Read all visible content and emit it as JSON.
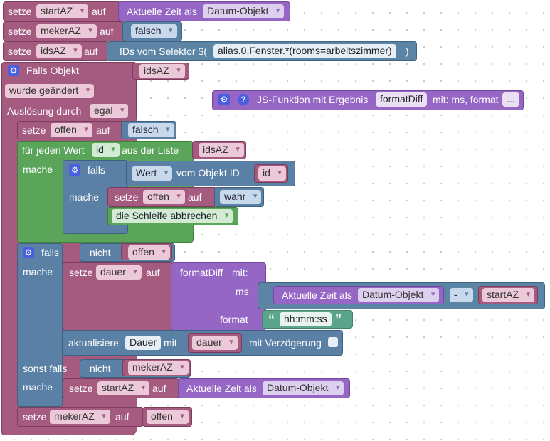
{
  "b1": {
    "setze": "setze",
    "var": "startAZ",
    "auf": "auf",
    "value": "Aktuelle Zeit als",
    "format": "Datum-Objekt"
  },
  "b2": {
    "setze": "setze",
    "var": "mekerAZ",
    "auf": "auf",
    "value": "falsch"
  },
  "b3": {
    "setze": "setze",
    "var": "idsAZ",
    "auf": "auf",
    "prefix": "IDs vom Selektor $(",
    "selector": "alias.0.Fenster.*(rooms=arbeitszimmer)",
    "suffix": ")"
  },
  "trigger": {
    "title": "Falls Objekt",
    "object": "idsAZ",
    "mode": "wurde geändert",
    "label_ausloesung": "Auslösung durch",
    "ausloesung": "egal"
  },
  "jsfunc": {
    "label": "JS-Funktion mit Ergebnis",
    "name": "formatDiff",
    "params": "mit: ms, format",
    "more": "..."
  },
  "setze_offen": {
    "setze": "setze",
    "var": "offen",
    "auf": "auf",
    "value": "falsch"
  },
  "loop": {
    "label": "für jeden Wert",
    "var": "id",
    "label2": "aus der Liste",
    "list": "idsAZ",
    "mache": "mache"
  },
  "if1": {
    "falls": "falls",
    "prop": "Wert",
    "label_objekt": "vom Objekt ID",
    "id_var": "id",
    "mache": "mache",
    "setze": "setze",
    "set_var": "offen",
    "auf": "auf",
    "set_value": "wahr",
    "break": "die Schleife abbrechen"
  },
  "if2": {
    "falls": "falls",
    "not": "nicht",
    "cond_var": "offen",
    "mache": "mache",
    "setze": "setze",
    "dauer_var": "dauer",
    "auf": "auf",
    "call": "formatDiff",
    "mit": "mit:",
    "ms": "ms",
    "now": "Aktuelle Zeit als",
    "now_fmt": "Datum-Objekt",
    "op": "-",
    "minus_var": "startAZ",
    "format": "format",
    "format_value": "hh:mm:ss",
    "update": "aktualisiere",
    "state": "Dauer",
    "update_mit": "mit",
    "update_var": "dauer",
    "delay": "mit Verzögerung",
    "sonst": "sonst falls",
    "not2": "nicht",
    "cond2": "mekerAZ",
    "mache2": "mache",
    "setze2": "setze",
    "var2": "startAZ",
    "auf2": "auf",
    "now2": "Aktuelle Zeit als",
    "now2_fmt": "Datum-Objekt"
  },
  "final": {
    "setze": "setze",
    "var": "mekerAZ",
    "auf": "auf",
    "value": "offen"
  },
  "icons": {
    "gear": "⚙",
    "help": "?",
    "open_quote": "“",
    "close_quote": "”"
  }
}
